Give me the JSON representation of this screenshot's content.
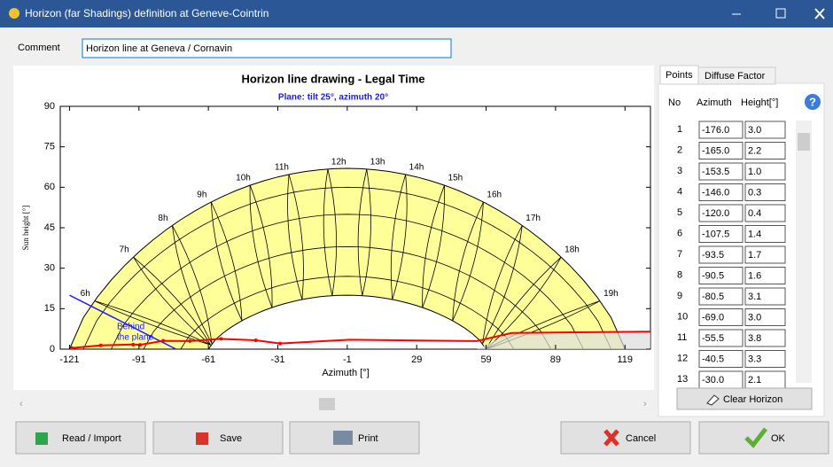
{
  "window": {
    "title": "Horizon (far Shadings) definition at Geneve-Cointrin"
  },
  "comment": {
    "label": "Comment",
    "value": "Horizon line at Geneva / Cornavin"
  },
  "tabs": [
    "Points",
    "Diffuse Factor"
  ],
  "table": {
    "headers": [
      "No",
      "Azimuth",
      "Height[°]"
    ],
    "rows": [
      [
        1,
        "-176.0",
        "3.0"
      ],
      [
        2,
        "-165.0",
        "2.2"
      ],
      [
        3,
        "-153.5",
        "1.0"
      ],
      [
        4,
        "-146.0",
        "0.3"
      ],
      [
        5,
        "-120.0",
        "0.4"
      ],
      [
        6,
        "-107.5",
        "1.4"
      ],
      [
        7,
        "-93.5",
        "1.7"
      ],
      [
        8,
        "-90.5",
        "1.6"
      ],
      [
        9,
        "-80.5",
        "3.1"
      ],
      [
        10,
        "-69.0",
        "3.0"
      ],
      [
        11,
        "-55.5",
        "3.8"
      ],
      [
        12,
        "-40.5",
        "3.3"
      ],
      [
        13,
        "-30.0",
        "2.1"
      ]
    ]
  },
  "clear_button": "Clear Horizon",
  "buttons": {
    "read": "Read / Import",
    "save": "Save",
    "print": "Print",
    "cancel": "Cancel",
    "ok": "OK"
  },
  "chart_data": {
    "type": "sunpath",
    "title": "Horizon line drawing - Legal Time",
    "subtitle": "Plane: tilt 25°, azimuth 20°",
    "xlabel": "Azimuth [°]",
    "ylabel": "Sun height [°]",
    "xlim": [
      -125,
      130
    ],
    "ylim": [
      0,
      90
    ],
    "xticks": [
      -121,
      -91,
      -61,
      -31,
      -1,
      29,
      59,
      89,
      119
    ],
    "yticks": [
      0,
      15,
      30,
      45,
      60,
      75,
      90
    ],
    "hour_labels": [
      "6h",
      "7h",
      "8h",
      "9h",
      "10h",
      "11h",
      "12h",
      "13h",
      "14h",
      "15h",
      "16h",
      "17h",
      "18h",
      "19h"
    ],
    "annotation": [
      "Behind",
      "the plane"
    ]
  }
}
